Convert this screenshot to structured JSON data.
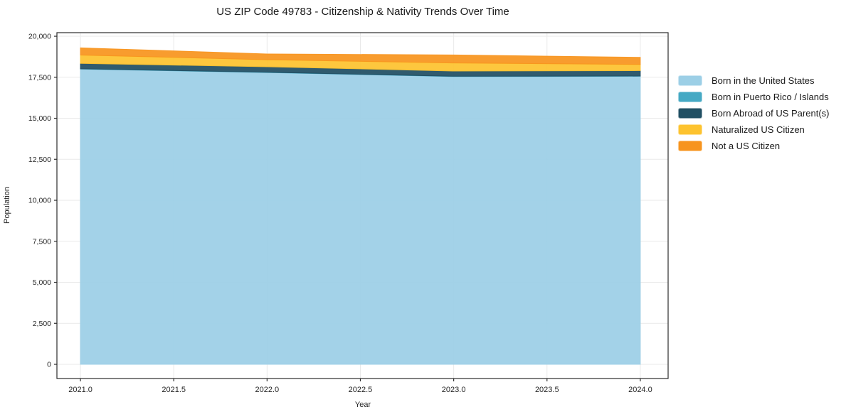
{
  "page": {
    "title": "US ZIP Code 49783 - Citizenship & Nativity Trends Over Time"
  },
  "chart_data": {
    "type": "area",
    "stacked": true,
    "title": "US ZIP Code 49783 - Citizenship & Nativity Trends Over Time",
    "xlabel": "Year",
    "ylabel": "Population",
    "x": [
      2021,
      2022,
      2023,
      2024
    ],
    "series": [
      {
        "name": "Born in the United States",
        "color": "#9ccfe6",
        "values": [
          18000,
          17790,
          17545,
          17560
        ]
      },
      {
        "name": "Born in Puerto Rico / Islands",
        "color": "#45a9c4",
        "values": [
          15,
          15,
          15,
          15
        ]
      },
      {
        "name": "Born Abroad of US Parent(s)",
        "color": "#204f63",
        "values": [
          330,
          335,
          320,
          330
        ]
      },
      {
        "name": "Naturalized US Citizen",
        "color": "#fdc32f",
        "values": [
          510,
          430,
          490,
          375
        ]
      },
      {
        "name": "Not a US Citizen",
        "color": "#f7941e",
        "values": [
          435,
          350,
          490,
          435
        ]
      }
    ],
    "xlim": [
      2020.874,
      2024.149
    ],
    "ylim": [
      -866,
      20218
    ],
    "grid": true,
    "legend_position": "outside-right",
    "x_ticks": [
      {
        "v": 2021.0,
        "label": "2021.0"
      },
      {
        "v": 2021.5,
        "label": "2021.5"
      },
      {
        "v": 2022.0,
        "label": "2022.0"
      },
      {
        "v": 2022.5,
        "label": "2022.5"
      },
      {
        "v": 2023.0,
        "label": "2023.0"
      },
      {
        "v": 2023.5,
        "label": "2023.5"
      },
      {
        "v": 2024.0,
        "label": "2024.0"
      }
    ],
    "y_ticks": [
      {
        "v": 0,
        "label": "0"
      },
      {
        "v": 2500,
        "label": "2,500"
      },
      {
        "v": 5000,
        "label": "5,000"
      },
      {
        "v": 7500,
        "label": "7,500"
      },
      {
        "v": 10000,
        "label": "10,000"
      },
      {
        "v": 12500,
        "label": "12,500"
      },
      {
        "v": 15000,
        "label": "15,000"
      },
      {
        "v": 17500,
        "label": "17,500"
      },
      {
        "v": 20000,
        "label": "20,000"
      }
    ],
    "colors": {
      "grid": "#e9e9e9",
      "spine": "#2b2b2b",
      "tick_text": "#262626",
      "title_text": "#1a1a1a"
    }
  }
}
